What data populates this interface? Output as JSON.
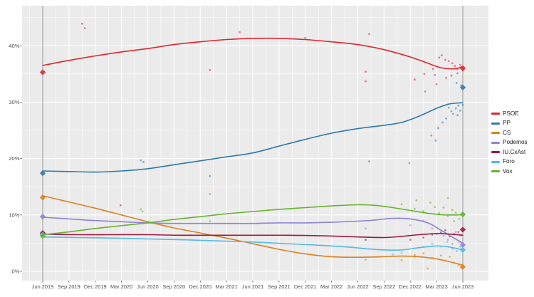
{
  "chart_data": {
    "type": "scatter",
    "title": "",
    "description": "Opinion polling trends with smoothed lines, poll scatter points and election-result diamonds (Asturias), Jun 2019 - Jun 2023",
    "x_axis": {
      "tick_labels": [
        "Jun 2019",
        "Sep 2019",
        "Dec 2019",
        "Mar 2020",
        "Jun 2020",
        "Sep 2020",
        "Dec 2020",
        "Mar 2021",
        "Jun 2021",
        "Sep 2021",
        "Dec 2021",
        "Mar 2022",
        "Jun 2022",
        "Sep 2022",
        "Dec 2022",
        "Mar 2023",
        "Jun 2023"
      ],
      "tick_months": [
        0,
        3,
        6,
        9,
        12,
        15,
        18,
        21,
        24,
        27,
        30,
        33,
        36,
        39,
        42,
        45,
        48
      ],
      "minor_months": [
        -1.5,
        1.5,
        4.5,
        7.5,
        10.5,
        13.5,
        16.5,
        19.5,
        22.5,
        25.5,
        28.5,
        31.5,
        34.5,
        37.5,
        40.5,
        43.5,
        46.5,
        49.5
      ]
    },
    "y_axis": {
      "tick_labels": [
        "0%",
        "10%",
        "20%",
        "30%",
        "40%"
      ],
      "tick_values": [
        0,
        10,
        20,
        30,
        40
      ],
      "minor_values": [
        5,
        15,
        25,
        35,
        45
      ],
      "range": [
        -1.6,
        47.2
      ]
    },
    "election_marker_months": [
      0,
      48
    ],
    "legend_position": "right",
    "series": [
      {
        "name": "PSOE",
        "color": "#e2242f",
        "trend": [
          [
            0,
            36.5
          ],
          [
            3,
            37.4
          ],
          [
            6,
            38.2
          ],
          [
            9,
            38.9
          ],
          [
            12,
            39.5
          ],
          [
            15,
            40.2
          ],
          [
            18,
            40.7
          ],
          [
            21,
            41.1
          ],
          [
            24,
            41.3
          ],
          [
            27,
            41.3
          ],
          [
            30,
            41.1
          ],
          [
            33,
            40.7
          ],
          [
            36,
            40.2
          ],
          [
            39,
            39.3
          ],
          [
            42,
            38.0
          ],
          [
            44,
            36.9
          ],
          [
            45.5,
            36.1
          ],
          [
            47,
            35.9
          ],
          [
            48,
            36.3
          ]
        ],
        "polls": [
          [
            4.5,
            43.9
          ],
          [
            4.8,
            43.1
          ],
          [
            19.1,
            35.7
          ],
          [
            22.5,
            42.4
          ],
          [
            30.0,
            41.4
          ],
          [
            36.9,
            35.4
          ],
          [
            36.9,
            33.7
          ],
          [
            37.3,
            42.1
          ],
          [
            42.5,
            34.0
          ],
          [
            43.6,
            35.0
          ],
          [
            44.6,
            35.9
          ],
          [
            44.8,
            34.8
          ],
          [
            45.0,
            33.2
          ],
          [
            45.3,
            37.9
          ],
          [
            45.6,
            38.3
          ],
          [
            46.0,
            37.5
          ],
          [
            46.1,
            34.3
          ],
          [
            46.4,
            37.3
          ],
          [
            46.7,
            34.7
          ],
          [
            46.8,
            36.9
          ],
          [
            47.1,
            36.4
          ],
          [
            47.4,
            35.9
          ],
          [
            47.4,
            35.1
          ],
          [
            47.7,
            36.6
          ],
          [
            48.0,
            35.6
          ]
        ],
        "elections": [
          [
            0,
            35.3
          ],
          [
            48,
            36.0
          ]
        ]
      },
      {
        "name": "PP",
        "color": "#2f79ad",
        "trend": [
          [
            0,
            17.8
          ],
          [
            3,
            17.7
          ],
          [
            6,
            17.6
          ],
          [
            9,
            17.8
          ],
          [
            12,
            18.2
          ],
          [
            15,
            18.9
          ],
          [
            18,
            19.6
          ],
          [
            21,
            20.3
          ],
          [
            24,
            21.0
          ],
          [
            27,
            22.2
          ],
          [
            30,
            23.4
          ],
          [
            33,
            24.5
          ],
          [
            36,
            25.3
          ],
          [
            39,
            25.9
          ],
          [
            41,
            26.4
          ],
          [
            43,
            27.5
          ],
          [
            45,
            28.9
          ],
          [
            46.5,
            29.7
          ],
          [
            48,
            29.9
          ]
        ],
        "polls": [
          [
            11.2,
            19.7
          ],
          [
            11.5,
            19.4
          ],
          [
            19.1,
            16.9
          ],
          [
            37.3,
            19.5
          ],
          [
            41.9,
            19.2
          ],
          [
            43.7,
            31.9
          ],
          [
            44.4,
            24.1
          ],
          [
            44.9,
            23.2
          ],
          [
            45.2,
            25.4
          ],
          [
            45.7,
            26.4
          ],
          [
            46.1,
            27.1
          ],
          [
            46.4,
            29.0
          ],
          [
            46.7,
            28.4
          ],
          [
            46.9,
            27.9
          ],
          [
            47.2,
            28.9
          ],
          [
            47.3,
            33.4
          ],
          [
            47.5,
            29.4
          ],
          [
            47.7,
            28.5
          ],
          [
            47.8,
            33.0
          ],
          [
            47.4,
            27.7
          ],
          [
            48.0,
            29.5
          ]
        ],
        "elections": [
          [
            0,
            17.4
          ],
          [
            48,
            32.6
          ]
        ]
      },
      {
        "name": "CS",
        "color": "#d9821f",
        "trend": [
          [
            0,
            13.4
          ],
          [
            3,
            12.3
          ],
          [
            6,
            11.2
          ],
          [
            9,
            10.0
          ],
          [
            12,
            8.8
          ],
          [
            15,
            7.7
          ],
          [
            18,
            6.8
          ],
          [
            21,
            5.9
          ],
          [
            24,
            4.9
          ],
          [
            27,
            3.9
          ],
          [
            30,
            3.1
          ],
          [
            33,
            2.6
          ],
          [
            36,
            2.5
          ],
          [
            39,
            2.6
          ],
          [
            41,
            2.7
          ],
          [
            43,
            2.6
          ],
          [
            45,
            2.2
          ],
          [
            46.5,
            1.7
          ],
          [
            48,
            1.1
          ]
        ],
        "polls": [
          [
            36.9,
            2.1
          ],
          [
            41.0,
            2.0
          ],
          [
            42.5,
            2.9
          ],
          [
            43.5,
            3.2
          ],
          [
            44.0,
            0.5
          ],
          [
            44.5,
            2.4
          ],
          [
            45.5,
            2.8
          ],
          [
            46.0,
            1.9
          ],
          [
            46.5,
            2.6
          ],
          [
            47.0,
            1.5
          ],
          [
            47.5,
            1.1
          ],
          [
            47.8,
            0.7
          ]
        ],
        "elections": [
          [
            0,
            13.1
          ],
          [
            48,
            0.8
          ]
        ]
      },
      {
        "name": "Podemos",
        "color": "#8f83d3",
        "trend": [
          [
            0,
            9.6
          ],
          [
            3,
            9.3
          ],
          [
            6,
            9.0
          ],
          [
            9,
            8.8
          ],
          [
            12,
            8.6
          ],
          [
            15,
            8.5
          ],
          [
            18,
            8.5
          ],
          [
            21,
            8.5
          ],
          [
            24,
            8.5
          ],
          [
            27,
            8.6
          ],
          [
            30,
            8.6
          ],
          [
            33,
            8.7
          ],
          [
            36,
            8.9
          ],
          [
            38,
            9.1
          ],
          [
            40,
            9.4
          ],
          [
            42,
            9.3
          ],
          [
            44,
            8.6
          ],
          [
            45.5,
            7.3
          ],
          [
            47,
            5.9
          ],
          [
            48,
            5.0
          ]
        ],
        "polls": [
          [
            19.1,
            13.7
          ],
          [
            36.9,
            7.6
          ],
          [
            42.0,
            8.2
          ],
          [
            43.5,
            9.0
          ],
          [
            44.5,
            7.6
          ],
          [
            45.0,
            6.6
          ],
          [
            45.8,
            6.3
          ],
          [
            46.3,
            5.6
          ],
          [
            46.8,
            4.9
          ],
          [
            47.2,
            7.0
          ],
          [
            47.6,
            5.2
          ]
        ],
        "elections": [
          [
            0,
            9.7
          ],
          [
            48,
            4.7
          ]
        ]
      },
      {
        "name": "IU.CxAst",
        "color": "#a11a3e",
        "trend": [
          [
            0,
            6.6
          ],
          [
            4,
            6.5
          ],
          [
            8,
            6.5
          ],
          [
            12,
            6.5
          ],
          [
            16,
            6.4
          ],
          [
            20,
            6.4
          ],
          [
            24,
            6.4
          ],
          [
            28,
            6.4
          ],
          [
            32,
            6.3
          ],
          [
            36,
            6.1
          ],
          [
            39,
            6.0
          ],
          [
            41,
            6.2
          ],
          [
            43,
            6.5
          ],
          [
            45,
            6.7
          ],
          [
            46.5,
            6.6
          ],
          [
            48,
            6.4
          ]
        ],
        "polls": [
          [
            8.9,
            11.7
          ],
          [
            36.9,
            5.6
          ],
          [
            42.0,
            5.6
          ],
          [
            43.5,
            6.0
          ],
          [
            44.5,
            6.5
          ],
          [
            45.5,
            6.9
          ],
          [
            46.0,
            7.3
          ],
          [
            46.5,
            6.2
          ],
          [
            47.0,
            6.6
          ],
          [
            47.5,
            7.0
          ],
          [
            47.8,
            6.4
          ]
        ],
        "elections": [
          [
            0,
            6.8
          ],
          [
            48,
            7.4
          ]
        ]
      },
      {
        "name": "Foro",
        "color": "#55b9e9",
        "trend": [
          [
            0,
            6.1
          ],
          [
            4,
            6.0
          ],
          [
            8,
            5.9
          ],
          [
            12,
            5.75
          ],
          [
            16,
            5.6
          ],
          [
            20,
            5.4
          ],
          [
            24,
            5.2
          ],
          [
            28,
            4.9
          ],
          [
            32,
            4.6
          ],
          [
            35,
            4.3
          ],
          [
            37,
            4.0
          ],
          [
            39,
            3.8
          ],
          [
            41,
            3.8
          ],
          [
            43,
            4.2
          ],
          [
            45,
            4.5
          ],
          [
            46.5,
            4.3
          ],
          [
            48,
            3.8
          ]
        ],
        "polls": [
          [
            40.0,
            3.0
          ],
          [
            41.0,
            3.3
          ],
          [
            42.5,
            2.5
          ],
          [
            43.5,
            4.3
          ],
          [
            44.5,
            4.9
          ],
          [
            45.5,
            4.4
          ],
          [
            46.2,
            5.2
          ],
          [
            46.8,
            4.0
          ],
          [
            47.3,
            3.6
          ],
          [
            47.7,
            4.4
          ]
        ],
        "elections": [
          [
            0,
            6.5
          ],
          [
            48,
            3.8
          ]
        ]
      },
      {
        "name": "Vox",
        "color": "#67b22b",
        "trend": [
          [
            0,
            6.5
          ],
          [
            3,
            7.0
          ],
          [
            6,
            7.6
          ],
          [
            9,
            8.1
          ],
          [
            12,
            8.6
          ],
          [
            15,
            9.2
          ],
          [
            18,
            9.7
          ],
          [
            21,
            10.2
          ],
          [
            24,
            10.6
          ],
          [
            27,
            11.0
          ],
          [
            30,
            11.3
          ],
          [
            33,
            11.6
          ],
          [
            36,
            11.8
          ],
          [
            38,
            11.7
          ],
          [
            40,
            11.3
          ],
          [
            42,
            10.8
          ],
          [
            44,
            10.3
          ],
          [
            46,
            10.0
          ],
          [
            48,
            10.05
          ]
        ],
        "polls": [
          [
            11.2,
            11.0
          ],
          [
            11.4,
            10.6
          ],
          [
            19.1,
            8.9
          ],
          [
            41.0,
            11.9
          ],
          [
            42.5,
            11.1
          ],
          [
            42.7,
            12.6
          ],
          [
            43.5,
            10.7
          ],
          [
            44.3,
            12.2
          ],
          [
            44.8,
            11.4
          ],
          [
            45.3,
            10.3
          ],
          [
            45.8,
            11.3
          ],
          [
            46.3,
            13.0
          ],
          [
            46.3,
            9.8
          ],
          [
            46.8,
            10.9
          ],
          [
            47.2,
            10.4
          ],
          [
            47.6,
            9.3
          ],
          [
            47.0,
            8.9
          ]
        ],
        "elections": [
          [
            0,
            6.3
          ],
          [
            48,
            10.1
          ]
        ]
      }
    ],
    "style": {
      "plot_bg": "#ebebeb",
      "grid": "#ffffff",
      "ref_line": "#8a8a8a",
      "axis_text": "#4d4d4d",
      "tick": "#333333",
      "legend_text": "#1a1a1a"
    }
  }
}
